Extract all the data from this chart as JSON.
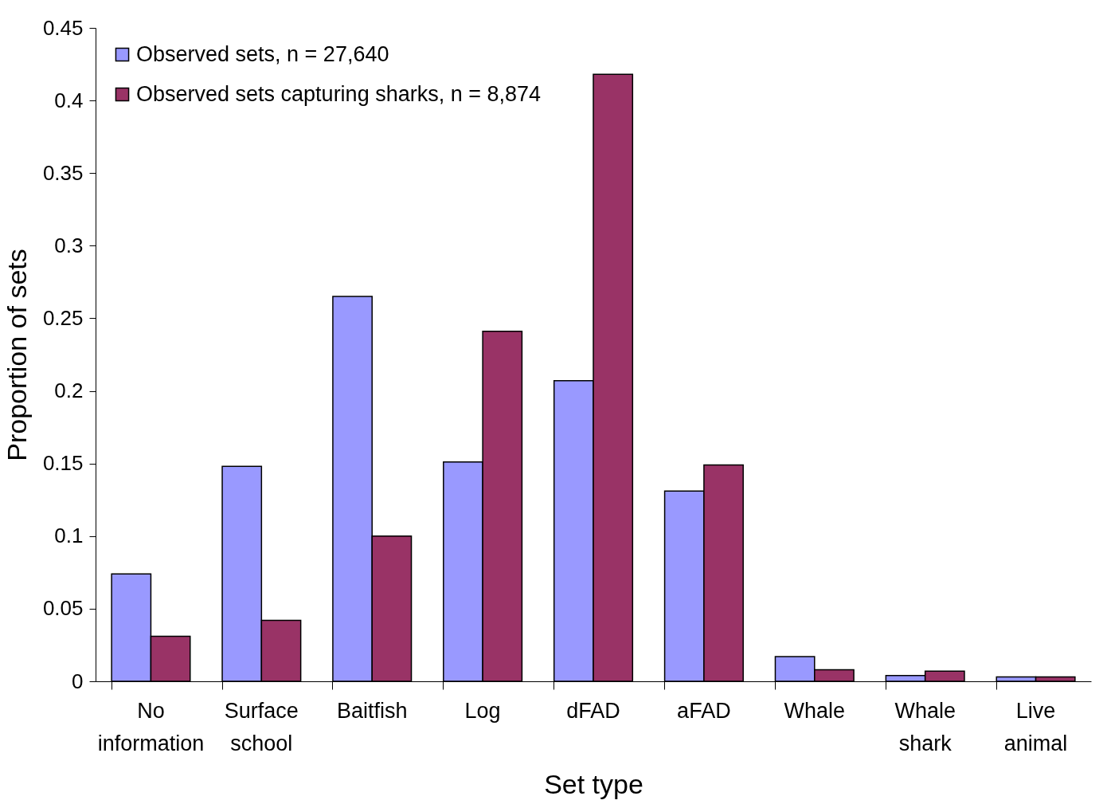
{
  "chart_data": {
    "type": "bar",
    "xlabel": "Set type",
    "ylabel": "Proportion of sets",
    "categories": [
      "No information",
      "Surface school",
      "Baitfish",
      "Log",
      "dFAD",
      "aFAD",
      "Whale",
      "Whale shark",
      "Live animal"
    ],
    "series": [
      {
        "name": "Observed sets, n = 27,640",
        "color": "#9999ff",
        "values": [
          0.074,
          0.148,
          0.265,
          0.151,
          0.207,
          0.131,
          0.017,
          0.004,
          0.003
        ]
      },
      {
        "name": "Observed sets capturing sharks, n = 8,874",
        "color": "#993366",
        "values": [
          0.031,
          0.042,
          0.1,
          0.241,
          0.418,
          0.149,
          0.008,
          0.007,
          0.003
        ]
      }
    ],
    "ylim": [
      0,
      0.45
    ],
    "yticks": [
      0,
      0.05,
      0.1,
      0.15,
      0.2,
      0.25,
      0.3,
      0.35,
      0.4,
      0.45
    ],
    "grid": false,
    "legend": "top left"
  }
}
